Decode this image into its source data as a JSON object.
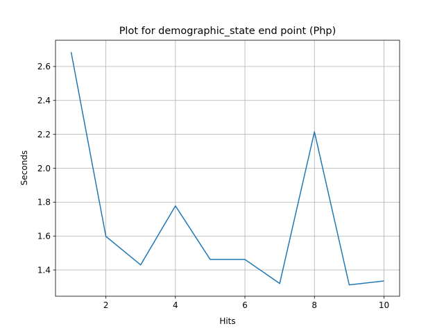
{
  "chart_data": {
    "type": "line",
    "title": "Plot for demographic_state end point (Php)",
    "xlabel": "Hits",
    "ylabel": "Seconds",
    "xlim": [
      0.55,
      10.45
    ],
    "ylim": [
      1.245,
      2.755
    ],
    "xticks": [
      2,
      4,
      6,
      8,
      10
    ],
    "yticks": [
      1.4,
      1.6,
      1.8,
      2.0,
      2.2,
      2.4,
      2.6
    ],
    "xtick_labels": [
      "2",
      "4",
      "6",
      "8",
      "10"
    ],
    "ytick_labels": [
      "1.4",
      "1.6",
      "1.8",
      "2.0",
      "2.2",
      "2.4",
      "2.6"
    ],
    "grid": true,
    "series": [
      {
        "color": "#1f77b4",
        "x": [
          1,
          2,
          3,
          4,
          5,
          6,
          7,
          8,
          9,
          10
        ],
        "y": [
          2.685,
          1.598,
          1.43,
          1.778,
          1.462,
          1.462,
          1.32,
          2.215,
          1.312,
          1.335
        ]
      }
    ]
  }
}
